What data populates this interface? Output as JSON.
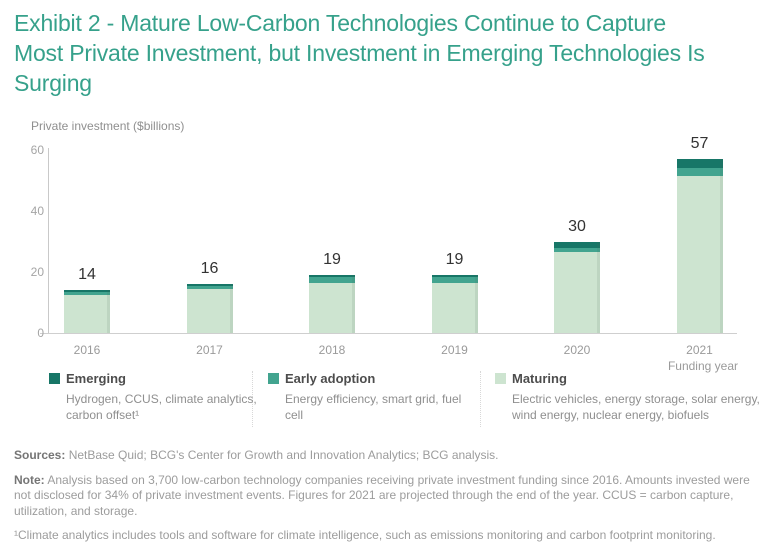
{
  "title": "Exhibit 2 - Mature Low-Carbon Technologies Continue to Capture Most Private Investment, but Investment in Emerging Technologies Is Surging",
  "title_lines": [
    "Exhibit 2 - Mature Low-Carbon Technologies Continue to Capture",
    "Most Private Investment, but Investment in Emerging Technologies Is",
    "Surging"
  ],
  "colors": {
    "title_accent": "#36a18b",
    "emerging": "#177667",
    "early_adoption": "#42a48f",
    "maturing": "#cde4d0",
    "axis_line": "#c9c9c9",
    "muted_text": "#9a9a9a"
  },
  "axis": {
    "y_label": "Private investment ($billions)",
    "x_label": "Funding year",
    "yticks": [
      "0",
      "20",
      "40",
      "60"
    ]
  },
  "chart_data": {
    "type": "bar",
    "stacked": true,
    "categories": [
      "2016",
      "2017",
      "2018",
      "2019",
      "2020",
      "2021"
    ],
    "totals": [
      14,
      16,
      19,
      19,
      30,
      57
    ],
    "series": [
      {
        "name": "Maturing",
        "color": "#cde4d0",
        "values": [
          12.6,
          14.3,
          16.5,
          16.5,
          26.5,
          51.5
        ]
      },
      {
        "name": "Early adoption",
        "color": "#42a48f",
        "values": [
          1.0,
          1.2,
          1.8,
          1.8,
          1.5,
          2.5
        ]
      },
      {
        "name": "Emerging",
        "color": "#177667",
        "values": [
          0.4,
          0.5,
          0.7,
          0.7,
          2.0,
          3.0
        ]
      }
    ],
    "ylabel": "Private investment ($billions)",
    "xlabel": "Funding year",
    "ylim": [
      0,
      60
    ],
    "yticks": [
      0,
      20,
      40,
      60
    ],
    "grid": false,
    "legend_position": "bottom",
    "value_labels": "totals shown above each bar"
  },
  "legend": {
    "items": [
      {
        "label": "Emerging",
        "color": "#177667",
        "description": "Hydrogen, CCUS, climate analytics, carbon offset¹"
      },
      {
        "label": "Early adoption",
        "color": "#42a48f",
        "description": "Energy efficiency, smart grid, fuel cell"
      },
      {
        "label": "Maturing",
        "color": "#cde4d0",
        "description": "Electric vehicles, energy storage, solar energy, wind energy, nuclear energy, biofuels"
      }
    ]
  },
  "footer": {
    "sources_label": "Sources:",
    "sources_text": " NetBase Quid; BCG's Center for Growth and Innovation Analytics; BCG analysis.",
    "note_label": "Note:",
    "note_text": " Analysis based on 3,700 low-carbon technology companies receiving private investment funding since 2016. Amounts invested were not disclosed for 34% of private investment events. Figures for 2021 are projected through the end of the year. CCUS = carbon capture, utilization, and storage.",
    "footnote": "¹Climate analytics includes tools and software for climate intelligence, such as emissions monitoring and carbon footprint monitoring."
  }
}
